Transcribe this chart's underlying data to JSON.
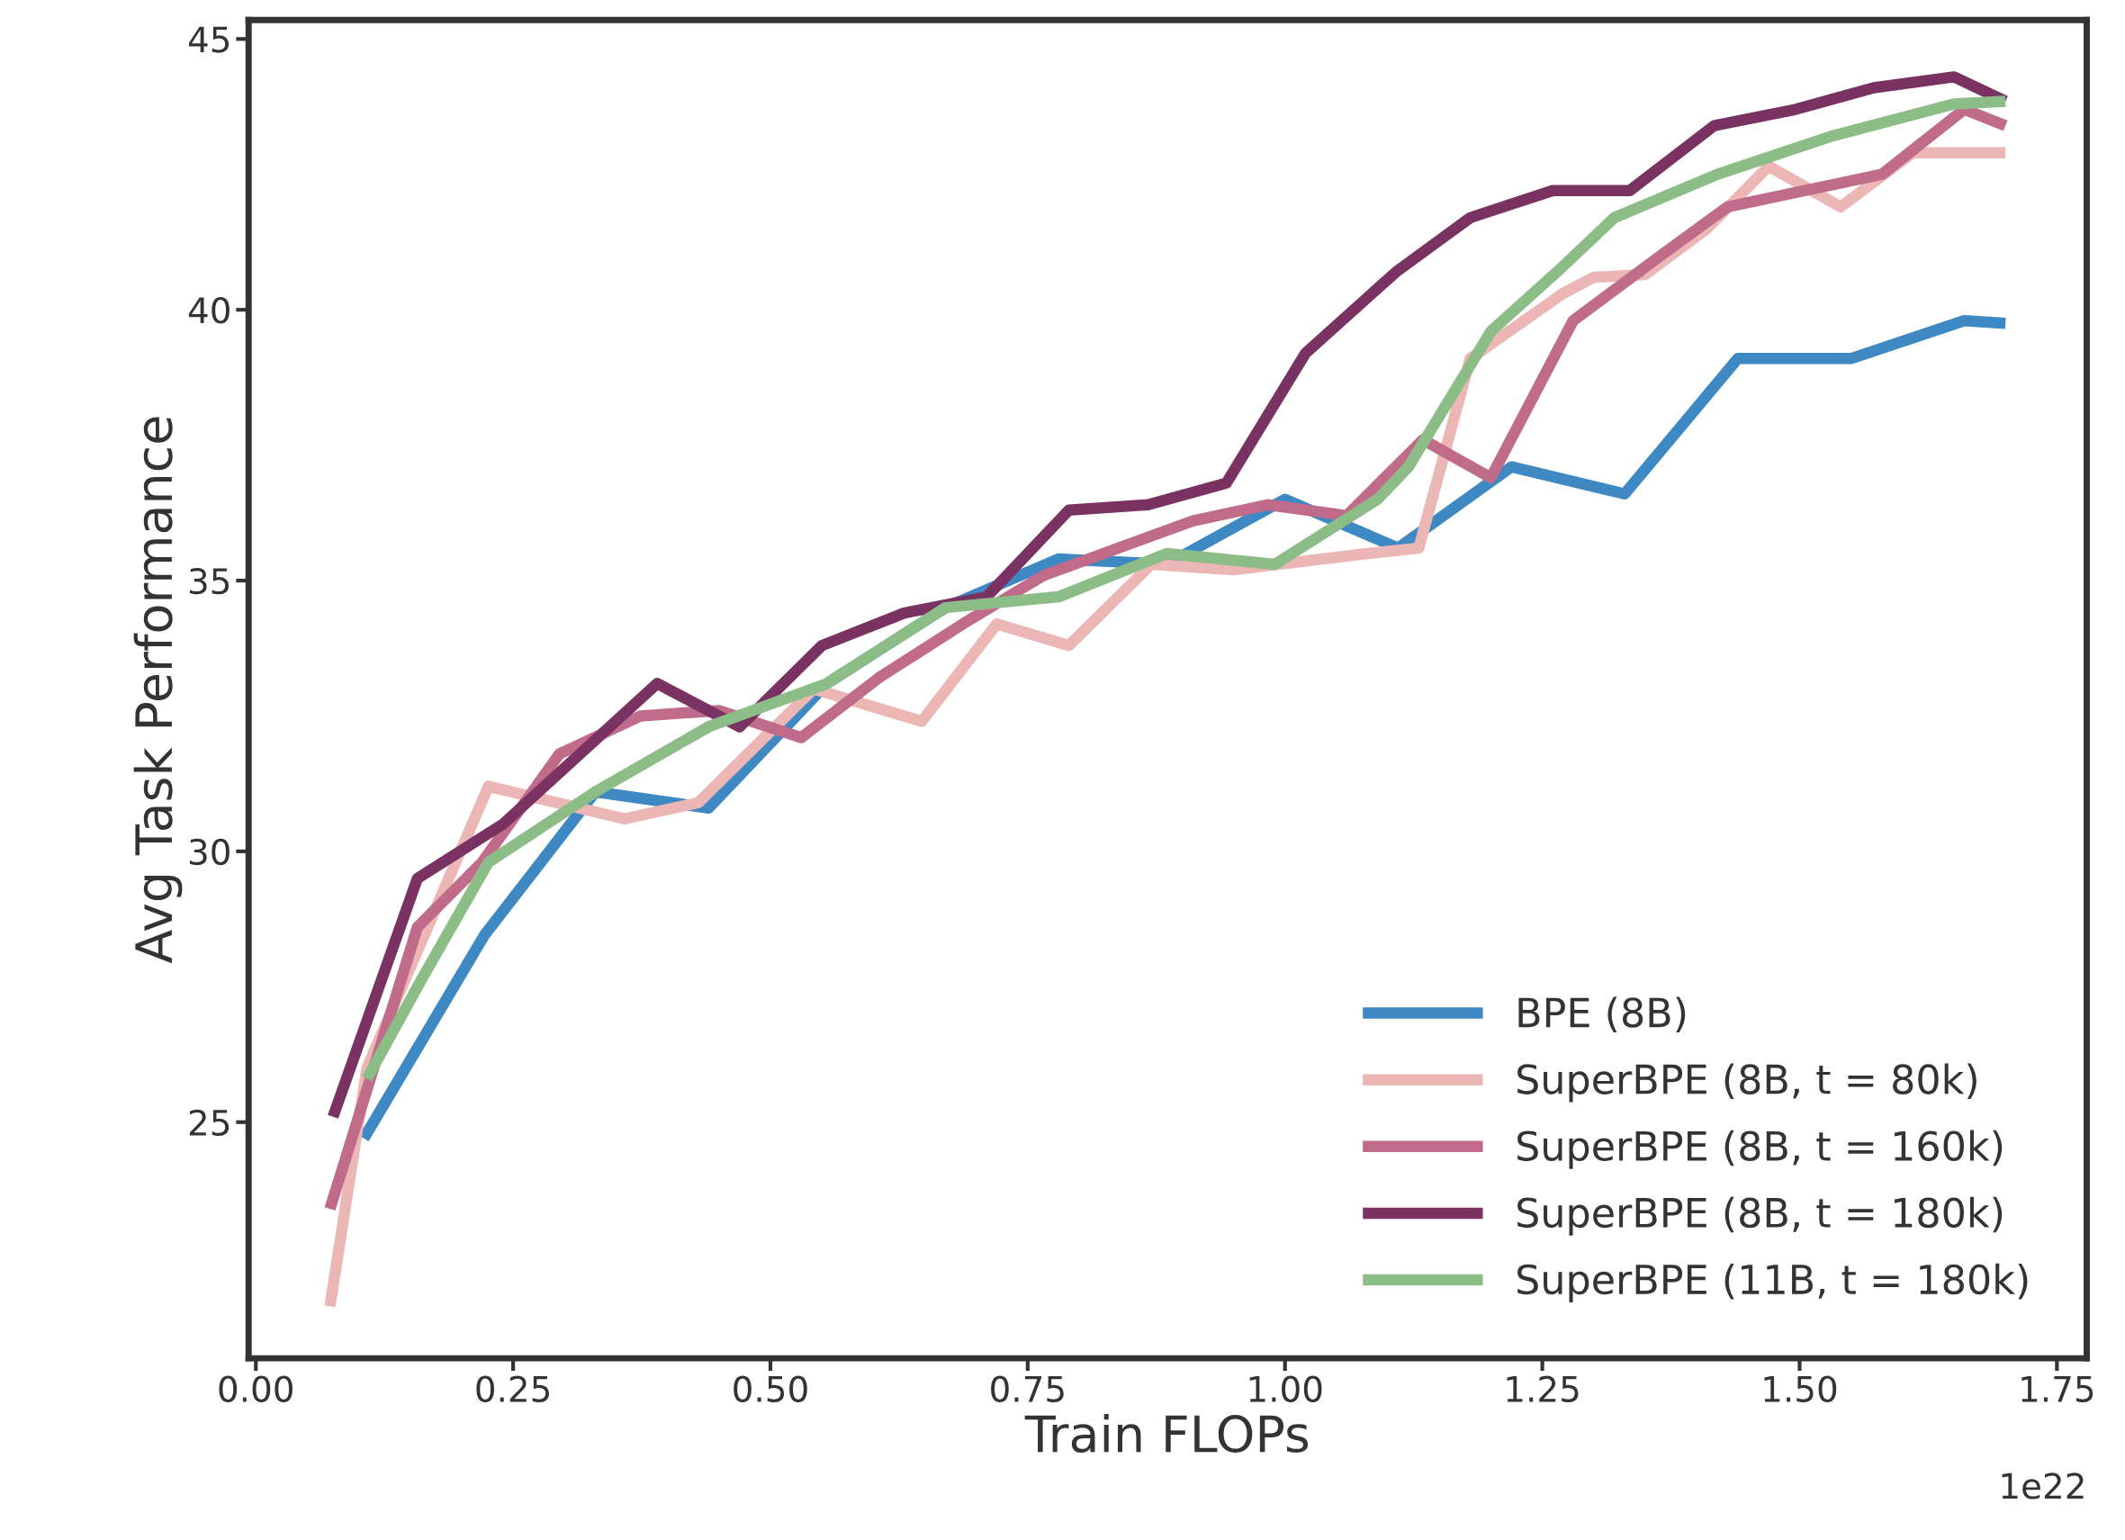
{
  "chart_data": {
    "type": "line",
    "xlabel": "Train FLOPs",
    "ylabel": "Avg Task Performance",
    "xlim": [
      -0.007,
      1.779
    ],
    "ylim": [
      20.64,
      45.35
    ],
    "xticks": [
      {
        "value": 0,
        "label": "0.00"
      },
      {
        "value": 0.25,
        "label": "0.25"
      },
      {
        "value": 0.5,
        "label": "0.50"
      },
      {
        "value": 0.75,
        "label": "0.75"
      },
      {
        "value": 1,
        "label": "1.00"
      },
      {
        "value": 1.25,
        "label": "1.25"
      },
      {
        "value": 1.5,
        "label": "1.50"
      },
      {
        "value": 1.75,
        "label": "1.75"
      }
    ],
    "yticks": [
      25,
      30,
      35,
      40,
      45
    ],
    "annotations": [
      "1e22"
    ],
    "legend": "bottom right",
    "grid": false,
    "marker": "none",
    "line_style": "solid",
    "series": [
      {
        "name": "BPE (8B)",
        "color": "#3e88c4",
        "x": [
          0.105,
          0.222,
          0.33,
          0.44,
          0.555,
          0.67,
          0.78,
          0.885,
          1.0,
          1.11,
          1.22,
          1.33,
          1.44,
          1.55,
          1.66,
          1.7
        ],
        "values": [
          24.7,
          28.45,
          31.1,
          30.8,
          33.1,
          34.5,
          35.4,
          35.3,
          36.5,
          35.6,
          37.1,
          36.6,
          39.1,
          39.1,
          39.8,
          39.75
        ]
      },
      {
        "name": "SuperBPE (8B, t = 80k)",
        "color": "#ebb6b3",
        "x": [
          0.072,
          0.108,
          0.226,
          0.358,
          0.43,
          0.542,
          0.647,
          0.72,
          0.79,
          0.87,
          0.95,
          1.08,
          1.13,
          1.18,
          1.27,
          1.3,
          1.35,
          1.41,
          1.47,
          1.54,
          1.61,
          1.7
        ],
        "values": [
          21.6,
          26.0,
          31.2,
          30.6,
          30.9,
          33.0,
          32.4,
          34.2,
          33.8,
          35.3,
          35.2,
          35.5,
          35.6,
          39.1,
          40.3,
          40.6,
          40.65,
          41.5,
          42.65,
          41.9,
          42.9,
          42.9
        ]
      },
      {
        "name": "SuperBPE (8B, t = 160k)",
        "color": "#c06b89",
        "x": [
          0.072,
          0.157,
          0.22,
          0.295,
          0.374,
          0.45,
          0.53,
          0.605,
          0.687,
          0.766,
          0.91,
          0.983,
          1.06,
          1.134,
          1.2,
          1.28,
          1.365,
          1.43,
          1.58,
          1.66,
          1.7
        ],
        "values": [
          23.4,
          28.6,
          29.8,
          31.8,
          32.5,
          32.6,
          32.1,
          33.2,
          34.2,
          35.1,
          36.1,
          36.4,
          36.2,
          37.6,
          36.9,
          39.8,
          41.0,
          41.9,
          42.5,
          43.7,
          43.4
        ]
      },
      {
        "name": "SuperBPE (8B, t = 180k)",
        "color": "#7a3263",
        "x": [
          0.075,
          0.157,
          0.24,
          0.39,
          0.47,
          0.55,
          0.63,
          0.71,
          0.79,
          0.867,
          0.943,
          1.02,
          1.108,
          1.18,
          1.26,
          1.335,
          1.417,
          1.496,
          1.572,
          1.65,
          1.7
        ],
        "values": [
          25.1,
          29.5,
          30.5,
          33.1,
          32.3,
          33.8,
          34.4,
          34.7,
          36.3,
          36.4,
          36.8,
          39.2,
          40.7,
          41.7,
          42.2,
          42.2,
          43.4,
          43.7,
          44.1,
          44.3,
          43.85
        ]
      },
      {
        "name": "SuperBPE (11B, t = 180k)",
        "color": "#8cbd87",
        "x": [
          0.108,
          0.16,
          0.226,
          0.33,
          0.44,
          0.555,
          0.67,
          0.78,
          0.885,
          0.99,
          1.09,
          1.12,
          1.2,
          1.27,
          1.32,
          1.42,
          1.53,
          1.65,
          1.7
        ],
        "values": [
          25.8,
          27.6,
          29.8,
          31.1,
          32.3,
          33.1,
          34.5,
          34.7,
          35.5,
          35.3,
          36.5,
          37.1,
          39.6,
          40.8,
          41.7,
          42.5,
          43.2,
          43.8,
          43.85
        ]
      }
    ]
  }
}
